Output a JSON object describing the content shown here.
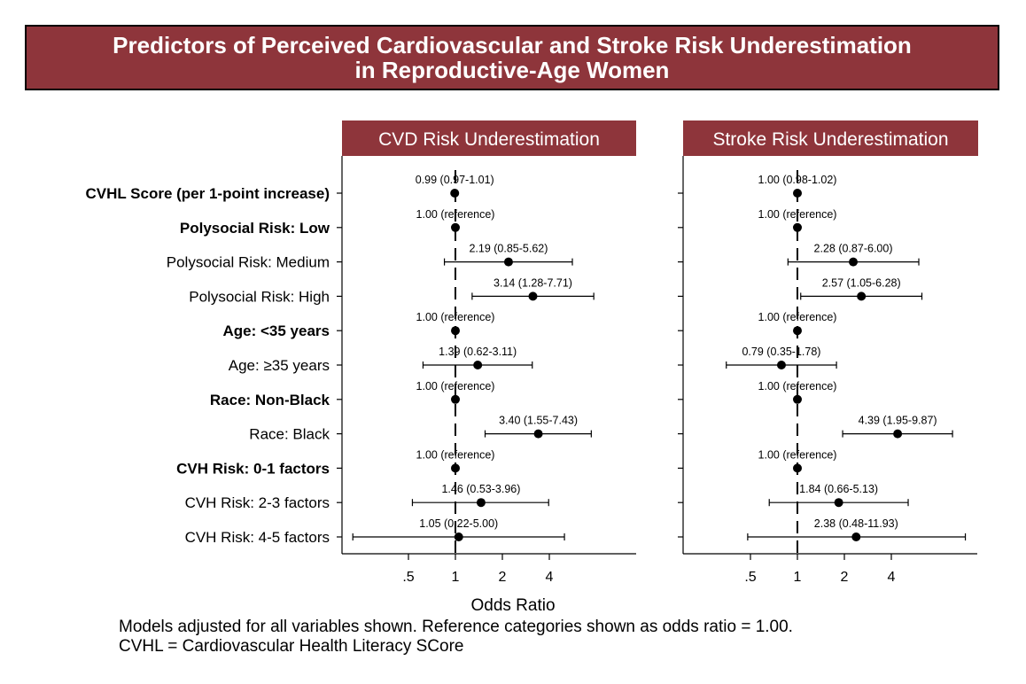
{
  "title": {
    "line1": "Predictors of Perceived Cardiovascular and Stroke Risk Underestimation",
    "line2": "in Reproductive-Age Women"
  },
  "colors": {
    "banner": "#8e353b",
    "text": "#000000",
    "marker": "#000000"
  },
  "footnote": {
    "line1": "Models adjusted for all variables shown. Reference categories shown as odds ratio = 1.00.",
    "line2": "CVHL = Cardiovascular Health Literacy SCore"
  },
  "chart_data": {
    "type": "forest",
    "xlabel": "Odds Ratio",
    "x_scale": "log2",
    "x_ticks": [
      {
        "value": 0.5,
        "label": ".5"
      },
      {
        "value": 1,
        "label": "1"
      },
      {
        "value": 2,
        "label": "2"
      },
      {
        "value": 4,
        "label": "4"
      }
    ],
    "reference_line": 1,
    "rows": [
      {
        "label": "CVHL Score (per 1-point increase)",
        "bold": true
      },
      {
        "label": "Polysocial Risk: Low",
        "bold": true
      },
      {
        "label": "Polysocial Risk: Medium",
        "bold": false
      },
      {
        "label": "Polysocial Risk: High",
        "bold": false
      },
      {
        "label": "Age: <35 years",
        "bold": true
      },
      {
        "label": "Age: ≥35 years",
        "bold": false
      },
      {
        "label": "Race: Non-Black",
        "bold": true
      },
      {
        "label": "Race: Black",
        "bold": false
      },
      {
        "label": "CVH Risk: 0-1 factors",
        "bold": true
      },
      {
        "label": "CVH Risk: 2-3 factors",
        "bold": false
      },
      {
        "label": "CVH Risk: 4-5 factors",
        "bold": false
      }
    ],
    "panels": [
      {
        "title": "CVD Risk Underestimation",
        "estimates": [
          {
            "or": 0.99,
            "lo": 0.97,
            "hi": 1.01,
            "text": "0.99 (0.97-1.01)"
          },
          {
            "or": 1.0,
            "lo": 1.0,
            "hi": 1.0,
            "text": "1.00 (reference)"
          },
          {
            "or": 2.19,
            "lo": 0.85,
            "hi": 5.62,
            "text": "2.19 (0.85-5.62)"
          },
          {
            "or": 3.14,
            "lo": 1.28,
            "hi": 7.71,
            "text": "3.14 (1.28-7.71)"
          },
          {
            "or": 1.0,
            "lo": 1.0,
            "hi": 1.0,
            "text": "1.00 (reference)"
          },
          {
            "or": 1.39,
            "lo": 0.62,
            "hi": 3.11,
            "text": "1.39 (0.62-3.11)"
          },
          {
            "or": 1.0,
            "lo": 1.0,
            "hi": 1.0,
            "text": "1.00 (reference)"
          },
          {
            "or": 3.4,
            "lo": 1.55,
            "hi": 7.43,
            "text": "3.40 (1.55-7.43)"
          },
          {
            "or": 1.0,
            "lo": 1.0,
            "hi": 1.0,
            "text": "1.00 (reference)"
          },
          {
            "or": 1.46,
            "lo": 0.53,
            "hi": 3.96,
            "text": "1.46 (0.53-3.96)"
          },
          {
            "or": 1.05,
            "lo": 0.22,
            "hi": 5.0,
            "text": "1.05 (0.22-5.00)"
          }
        ]
      },
      {
        "title": "Stroke Risk Underestimation",
        "estimates": [
          {
            "or": 1.0,
            "lo": 0.98,
            "hi": 1.02,
            "text": "1.00 (0.98-1.02)"
          },
          {
            "or": 1.0,
            "lo": 1.0,
            "hi": 1.0,
            "text": "1.00 (reference)"
          },
          {
            "or": 2.28,
            "lo": 0.87,
            "hi": 6.0,
            "text": "2.28 (0.87-6.00)"
          },
          {
            "or": 2.57,
            "lo": 1.05,
            "hi": 6.28,
            "text": "2.57 (1.05-6.28)"
          },
          {
            "or": 1.0,
            "lo": 1.0,
            "hi": 1.0,
            "text": "1.00 (reference)"
          },
          {
            "or": 0.79,
            "lo": 0.35,
            "hi": 1.78,
            "text": "0.79 (0.35-1.78)"
          },
          {
            "or": 1.0,
            "lo": 1.0,
            "hi": 1.0,
            "text": "1.00 (reference)"
          },
          {
            "or": 4.39,
            "lo": 1.95,
            "hi": 9.87,
            "text": "4.39 (1.95-9.87)"
          },
          {
            "or": 1.0,
            "lo": 1.0,
            "hi": 1.0,
            "text": "1.00 (reference)"
          },
          {
            "or": 1.84,
            "lo": 0.66,
            "hi": 5.13,
            "text": "1.84 (0.66-5.13)"
          },
          {
            "or": 2.38,
            "lo": 0.48,
            "hi": 11.93,
            "text": "2.38 (0.48-11.93)"
          }
        ]
      }
    ]
  }
}
